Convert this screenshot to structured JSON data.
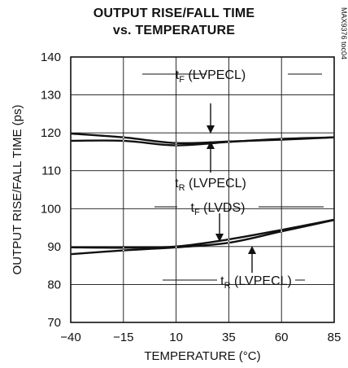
{
  "chart_data": {
    "type": "line",
    "title_line1": "OUTPUT RISE/FALL TIME",
    "title_line2": "vs. TEMPERATURE",
    "xlabel": "TEMPERATURE (°C)",
    "ylabel": "OUTPUT RISE/FALL TIME (ps)",
    "xlim": [
      -40,
      85
    ],
    "ylim": [
      70,
      140
    ],
    "xticks": [
      "-40",
      "-15",
      "10",
      "35",
      "60",
      "85"
    ],
    "yticks": [
      "70",
      "80",
      "90",
      "100",
      "110",
      "120",
      "130",
      "140"
    ],
    "grid": true,
    "watermark": "MAX9376 toc04",
    "x": [
      -40,
      -15,
      10,
      35,
      60,
      85
    ],
    "series": [
      {
        "name": "tF (LVPECL)",
        "values": [
          119.8,
          118.8,
          117.3,
          117.7,
          118.2,
          118.8
        ]
      },
      {
        "name": "tR (LVPECL)",
        "values": [
          117.9,
          117.9,
          116.7,
          117.6,
          118.4,
          118.8
        ]
      },
      {
        "name": "tF (LVDS)",
        "values": [
          89.8,
          89.7,
          90.0,
          91.9,
          94.4,
          97.1
        ]
      },
      {
        "name": "tR (LVPECL)",
        "values": [
          88.0,
          89.0,
          89.8,
          91.0,
          94.0,
          97.0
        ]
      }
    ],
    "annotations": [
      {
        "base": "t",
        "sub": "F",
        "rest": " (LVPECL)"
      },
      {
        "base": "t",
        "sub": "R",
        "rest": " (LVPECL)"
      },
      {
        "base": "t",
        "sub": "F",
        "rest": " (LVDS)"
      },
      {
        "base": "t",
        "sub": "R",
        "rest": " (LVPECL)"
      }
    ]
  }
}
